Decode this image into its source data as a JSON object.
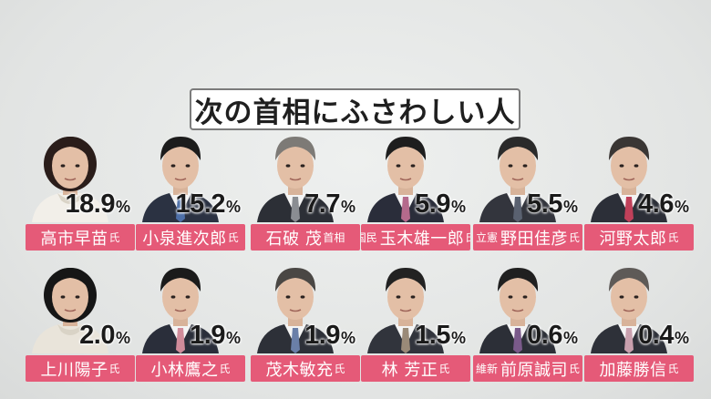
{
  "title": "次の首相にふさわしい人",
  "chart_data": {
    "type": "bar",
    "title": "次の首相にふさわしい人",
    "unit": "%",
    "items": [
      {
        "prefix": "",
        "name": "高市早苗",
        "suffix": "氏",
        "value": 18.9,
        "value_text": "18.9",
        "hair": "#2a1d1a",
        "suit": "#f2efe9",
        "tie": ""
      },
      {
        "prefix": "",
        "name": "小泉進次郎",
        "suffix": "氏",
        "value": 15.2,
        "value_text": "15.2",
        "hair": "#1c1c1c",
        "suit": "#2b3242",
        "tie": "#4d6fa8"
      },
      {
        "prefix": "",
        "name": "石破 茂",
        "suffix": "首相",
        "value": 7.7,
        "value_text": "7.7",
        "hair": "#7d7a76",
        "suit": "#2c2f36",
        "tie": "#8a8d92"
      },
      {
        "prefix": "国民",
        "name": "玉木雄一郎",
        "suffix": "氏",
        "value": 5.9,
        "value_text": "5.9",
        "hair": "#1e1e1e",
        "suit": "#2a2d3a",
        "tie": "#b46a8c"
      },
      {
        "prefix": "立憲",
        "name": "野田佳彦",
        "suffix": "氏",
        "value": 5.5,
        "value_text": "5.5",
        "hair": "#2a2a2a",
        "suit": "#33353d",
        "tie": "#5a6170"
      },
      {
        "prefix": "",
        "name": "河野太郎",
        "suffix": "氏",
        "value": 4.6,
        "value_text": "4.6",
        "hair": "#3a3634",
        "suit": "#2c2f38",
        "tie": "#c0405a"
      },
      {
        "prefix": "",
        "name": "上川陽子",
        "suffix": "氏",
        "value": 2.0,
        "value_text": "2.0",
        "hair": "#161616",
        "suit": "#e9e4da",
        "tie": ""
      },
      {
        "prefix": "",
        "name": "小林鷹之",
        "suffix": "氏",
        "value": 1.9,
        "value_text": "1.9",
        "hair": "#1b1b1b",
        "suit": "#2a2e3a",
        "tie": "#d08b9a"
      },
      {
        "prefix": "",
        "name": "茂木敏充",
        "suffix": "氏",
        "value": 1.9,
        "value_text": "1.9",
        "hair": "#4a4744",
        "suit": "#2d3038",
        "tie": "#6a7fa8"
      },
      {
        "prefix": "",
        "name": "林 芳正",
        "suffix": "氏",
        "value": 1.5,
        "value_text": "1.5",
        "hair": "#222222",
        "suit": "#31343c",
        "tie": "#9a8a78"
      },
      {
        "prefix": "維新",
        "name": "前原誠司",
        "suffix": "氏",
        "value": 0.6,
        "value_text": "0.6",
        "hair": "#202020",
        "suit": "#2c2f37",
        "tie": "#7a5a8a"
      },
      {
        "prefix": "",
        "name": "加藤勝信",
        "suffix": "氏",
        "value": 0.4,
        "value_text": "0.4",
        "hair": "#5e5a57",
        "suit": "#2e3139",
        "tie": "#c9a0ae"
      }
    ]
  }
}
